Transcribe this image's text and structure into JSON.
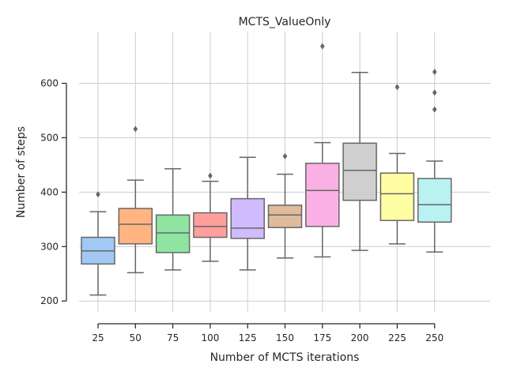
{
  "chart_data": {
    "type": "box",
    "title": "MCTS_ValueOnly",
    "xlabel": "Number of MCTS iterations",
    "ylabel": "Number of steps",
    "ylim": [
      180,
      695
    ],
    "yticks": [
      200,
      300,
      400,
      500,
      600
    ],
    "grid": true,
    "categories": [
      "25",
      "50",
      "75",
      "100",
      "125",
      "150",
      "175",
      "200",
      "225",
      "250"
    ],
    "boxes": [
      {
        "category": "25",
        "whisker_low": 211,
        "q1": 268,
        "median": 292,
        "q3": 317,
        "whisker_high": 364,
        "outliers": [
          396
        ],
        "color": "#a1c9f4"
      },
      {
        "category": "50",
        "whisker_low": 252,
        "q1": 305,
        "median": 341,
        "q3": 370,
        "whisker_high": 422,
        "outliers": [
          516
        ],
        "color": "#ffb482"
      },
      {
        "category": "75",
        "whisker_low": 257,
        "q1": 289,
        "median": 325,
        "q3": 358,
        "whisker_high": 443,
        "outliers": [],
        "color": "#8de5a1"
      },
      {
        "category": "100",
        "whisker_low": 273,
        "q1": 317,
        "median": 337,
        "q3": 362,
        "whisker_high": 420,
        "outliers": [
          430
        ],
        "color": "#ff9f9b"
      },
      {
        "category": "125",
        "whisker_low": 257,
        "q1": 315,
        "median": 334,
        "q3": 388,
        "whisker_high": 464,
        "outliers": [],
        "color": "#d0bbff"
      },
      {
        "category": "150",
        "whisker_low": 279,
        "q1": 335,
        "median": 358,
        "q3": 376,
        "whisker_high": 433,
        "outliers": [
          466
        ],
        "color": "#debb9b"
      },
      {
        "category": "175",
        "whisker_low": 281,
        "q1": 337,
        "median": 403,
        "q3": 453,
        "whisker_high": 491,
        "outliers": [
          668
        ],
        "color": "#fab0e4"
      },
      {
        "category": "200",
        "whisker_low": 293,
        "q1": 385,
        "median": 440,
        "q3": 490,
        "whisker_high": 620,
        "outliers": [],
        "color": "#cfcfcf"
      },
      {
        "category": "225",
        "whisker_low": 305,
        "q1": 348,
        "median": 397,
        "q3": 435,
        "whisker_high": 471,
        "outliers": [
          593
        ],
        "color": "#fffea3"
      },
      {
        "category": "250",
        "whisker_low": 290,
        "q1": 345,
        "median": 377,
        "q3": 425,
        "whisker_high": 457,
        "outliers": [
          552,
          583,
          621
        ],
        "color": "#b9f2f0"
      }
    ],
    "colors": {
      "line": "#666666",
      "grid": "#cccccc",
      "axis": "#262626"
    }
  }
}
